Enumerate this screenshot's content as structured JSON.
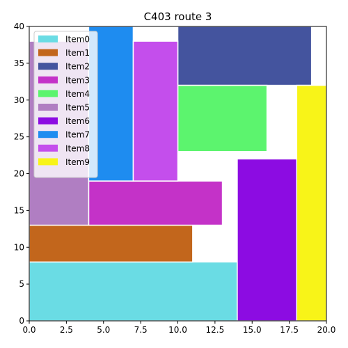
{
  "chart_data": {
    "type": "bar",
    "title": "C403 route 3",
    "xlabel": "",
    "ylabel": "",
    "xlim": [
      0,
      20
    ],
    "ylim": [
      0,
      40
    ],
    "xticks": [
      0.0,
      2.5,
      5.0,
      7.5,
      10.0,
      12.5,
      15.0,
      17.5,
      20.0
    ],
    "xtick_labels": [
      "0.0",
      "2.5",
      "5.0",
      "7.5",
      "10.0",
      "12.5",
      "15.0",
      "17.5",
      "20.0"
    ],
    "yticks": [
      0,
      5,
      10,
      15,
      20,
      25,
      30,
      35,
      40
    ],
    "ytick_labels": [
      "0",
      "5",
      "10",
      "15",
      "20",
      "25",
      "30",
      "35",
      "40"
    ],
    "grid": false,
    "legend_position": "top-left",
    "items": [
      {
        "name": "Item0",
        "color": "#6ADCE4",
        "x0": 0,
        "x1": 14,
        "y0": 0,
        "y1": 8
      },
      {
        "name": "Item1",
        "color": "#C2661C",
        "x0": 0,
        "x1": 11,
        "y0": 8,
        "y1": 13
      },
      {
        "name": "Item2",
        "color": "#44549E",
        "x0": 10,
        "x1": 19,
        "y0": 32,
        "y1": 40
      },
      {
        "name": "Item3",
        "color": "#C432C8",
        "x0": 4,
        "x1": 13,
        "y0": 13,
        "y1": 19
      },
      {
        "name": "Item4",
        "color": "#5CF46E",
        "x0": 10,
        "x1": 16,
        "y0": 23,
        "y1": 32
      },
      {
        "name": "Item5",
        "color": "#B07EC2",
        "x0": 0,
        "x1": 4,
        "y0": 13,
        "y1": 38
      },
      {
        "name": "Item6",
        "color": "#8C0CE2",
        "x0": 14,
        "x1": 18,
        "y0": 0,
        "y1": 22
      },
      {
        "name": "Item7",
        "color": "#1E8CF0",
        "x0": 4,
        "x1": 7,
        "y0": 19,
        "y1": 40
      },
      {
        "name": "Item8",
        "color": "#C44EEC",
        "x0": 7,
        "x1": 10,
        "y0": 19,
        "y1": 38
      },
      {
        "name": "Item9",
        "color": "#F8F418",
        "x0": 18,
        "x1": 20,
        "y0": 0,
        "y1": 32
      }
    ]
  }
}
